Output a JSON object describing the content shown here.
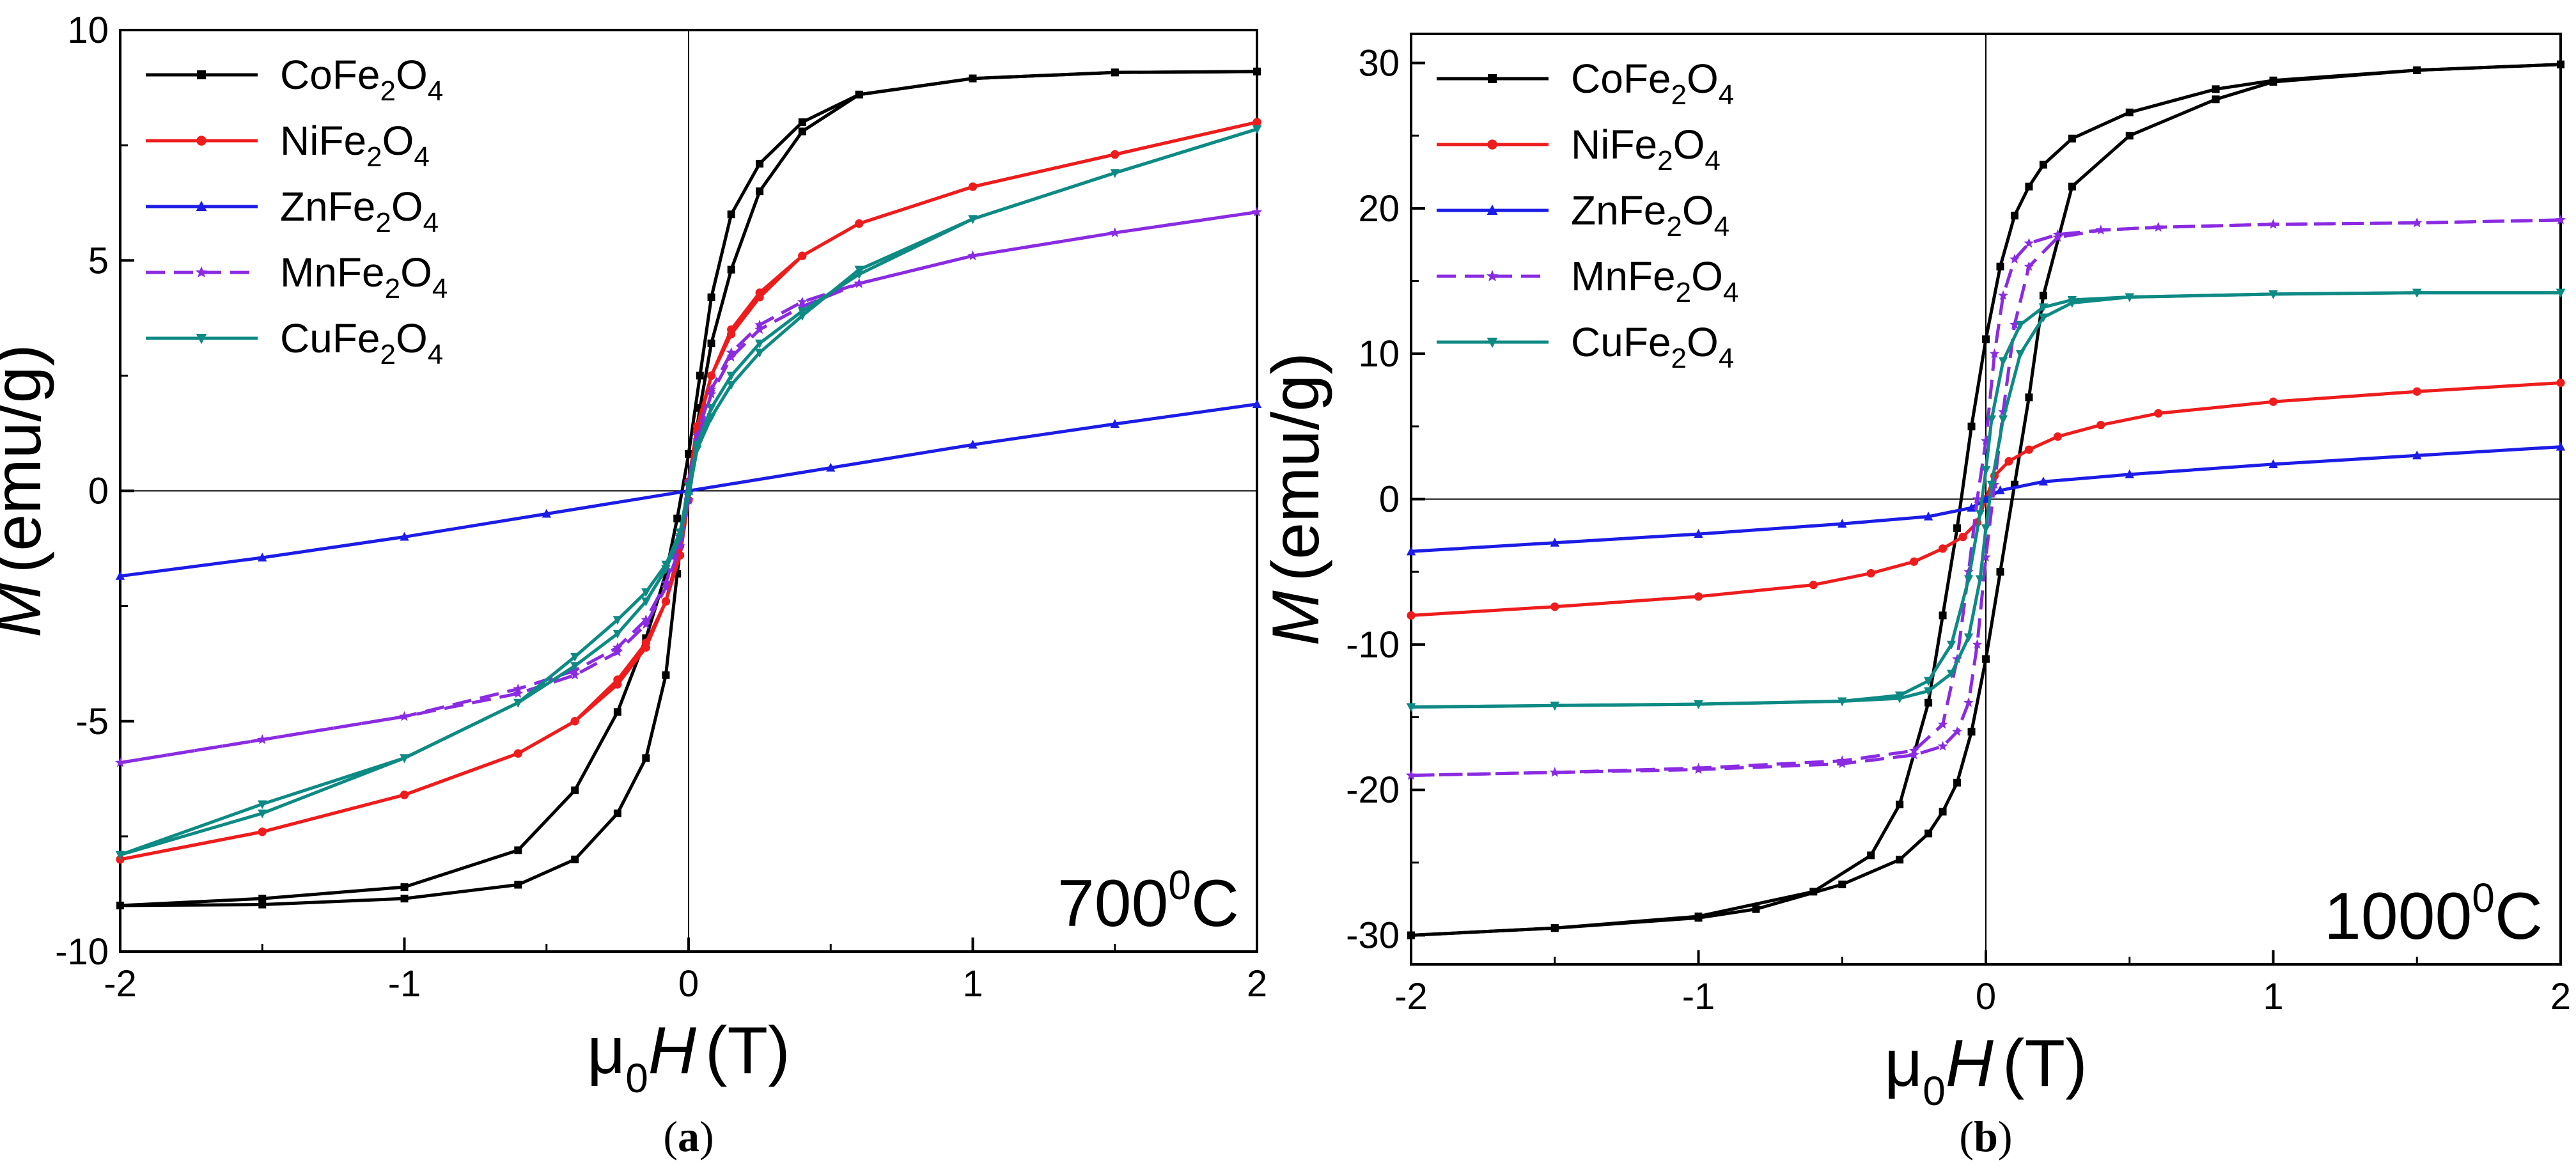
{
  "colors": {
    "CoFe2O4": "#000000",
    "NiFe2O4": "#ee1c1c",
    "ZnFe2O4": "#1c1ce6",
    "MnFe2O4": "#8a2be2",
    "CuFe2O4": "#0e8a84"
  },
  "chart_data": [
    {
      "type": "line",
      "caption": "a",
      "annotation": {
        "main": "700",
        "sup": "0",
        "tail": "C"
      },
      "xlabel": {
        "prefix": "μ",
        "sub": "0",
        "italic": "H",
        "unit": "(T)"
      },
      "ylabel": {
        "italic": "M",
        "unit": "(emu/g)"
      },
      "xlim": [
        -2,
        2
      ],
      "ylim": [
        -10,
        10
      ],
      "xticks": [
        "-2",
        "-1",
        "0",
        "1",
        "2"
      ],
      "yticks": [
        "-10",
        "-5",
        "0",
        "5",
        "10"
      ],
      "legend_position": "top-left",
      "series": [
        {
          "name": "CoFe2O4",
          "label": {
            "a": "CoFe",
            "s1": "2",
            "b": "O",
            "s2": "4"
          },
          "marker": "square",
          "branches": [
            {
              "x": [
                -2,
                -1.5,
                -1,
                -0.6,
                -0.4,
                -0.25,
                -0.15,
                -0.08,
                -0.04,
                0.0,
                0.04,
                0.08,
                0.15,
                0.25,
                0.4,
                0.6,
                1,
                1.5,
                2
              ],
              "y": [
                -9.0,
                -8.85,
                -8.6,
                -7.8,
                -6.5,
                -4.8,
                -3.2,
                -1.8,
                -0.6,
                0.8,
                2.5,
                4.2,
                6.0,
                7.1,
                8.0,
                8.6,
                8.95,
                9.08,
                9.1
              ]
            },
            {
              "x": [
                2,
                1.5,
                1,
                0.6,
                0.4,
                0.25,
                0.15,
                0.08,
                0.04,
                0.0,
                -0.04,
                -0.08,
                -0.15,
                -0.25,
                -0.4,
                -0.6,
                -1,
                -1.5,
                -2
              ],
              "y": [
                9.1,
                9.08,
                8.95,
                8.6,
                7.8,
                6.5,
                4.8,
                3.2,
                1.8,
                0.2,
                -1.8,
                -4.0,
                -5.8,
                -7.0,
                -8.0,
                -8.55,
                -8.85,
                -8.98,
                -9.0
              ]
            }
          ]
        },
        {
          "name": "NiFe2O4",
          "label": {
            "a": "NiFe",
            "s1": "2",
            "b": "O",
            "s2": "4"
          },
          "marker": "circle",
          "branches": [
            {
              "x": [
                -2,
                -1.5,
                -1,
                -0.6,
                -0.4,
                -0.25,
                -0.15,
                -0.08,
                -0.03,
                0.0,
                0.03,
                0.08,
                0.15,
                0.25,
                0.4,
                0.6,
                1,
                1.5,
                2
              ],
              "y": [
                -8.0,
                -7.4,
                -6.6,
                -5.7,
                -5.0,
                -4.1,
                -3.3,
                -2.4,
                -1.2,
                0.2,
                1.4,
                2.5,
                3.5,
                4.3,
                5.1,
                5.8,
                6.6,
                7.3,
                8.0
              ]
            },
            {
              "x": [
                2,
                1.5,
                1,
                0.6,
                0.4,
                0.25,
                0.15,
                0.08,
                0.03,
                0.0,
                -0.03,
                -0.08,
                -0.15,
                -0.25,
                -0.4,
                -0.6,
                -1,
                -1.5,
                -2
              ],
              "y": [
                8.0,
                7.3,
                6.6,
                5.8,
                5.1,
                4.2,
                3.4,
                2.5,
                1.3,
                -0.2,
                -1.4,
                -2.4,
                -3.4,
                -4.2,
                -5.0,
                -5.7,
                -6.6,
                -7.4,
                -8.0
              ]
            }
          ]
        },
        {
          "name": "ZnFe2O4",
          "label": {
            "a": "ZnFe",
            "s1": "2",
            "b": "O",
            "s2": "4"
          },
          "marker": "triangle",
          "branches": [
            {
              "x": [
                -2,
                -1.5,
                -1,
                -0.5,
                0,
                0.5,
                1,
                1.5,
                2
              ],
              "y": [
                -1.85,
                -1.45,
                -1.0,
                -0.5,
                0.0,
                0.5,
                1.0,
                1.45,
                1.88
              ]
            }
          ]
        },
        {
          "name": "MnFe2O4",
          "label": {
            "a": "MnFe",
            "s1": "2",
            "b": "O",
            "s2": "4"
          },
          "marker": "star",
          "branches": [
            {
              "x": [
                -2,
                -1.5,
                -1,
                -0.6,
                -0.4,
                -0.25,
                -0.15,
                -0.08,
                -0.03,
                0.0,
                0.03,
                0.08,
                0.15,
                0.25,
                0.4,
                0.6,
                1,
                1.5,
                2
              ],
              "y": [
                -5.9,
                -5.4,
                -4.9,
                -4.3,
                -3.9,
                -3.4,
                -2.8,
                -2.0,
                -1.0,
                0.2,
                1.2,
                2.2,
                3.0,
                3.6,
                4.1,
                4.5,
                5.1,
                5.6,
                6.05
              ]
            },
            {
              "x": [
                2,
                1.5,
                1,
                0.6,
                0.4,
                0.25,
                0.15,
                0.08,
                0.03,
                0.0,
                -0.03,
                -0.08,
                -0.15,
                -0.25,
                -0.4,
                -0.6,
                -1,
                -1.5,
                -2
              ],
              "y": [
                6.05,
                5.6,
                5.1,
                4.5,
                4.0,
                3.5,
                2.9,
                2.1,
                1.1,
                -0.2,
                -1.2,
                -2.1,
                -2.9,
                -3.5,
                -4.0,
                -4.4,
                -4.9,
                -5.4,
                -5.9
              ]
            }
          ]
        },
        {
          "name": "CuFe2O4",
          "label": {
            "a": "CuFe",
            "s1": "2",
            "b": "O",
            "s2": "4"
          },
          "marker": "triangle-down",
          "branches": [
            {
              "x": [
                -2,
                -1.5,
                -1,
                -0.6,
                -0.4,
                -0.25,
                -0.15,
                -0.08,
                -0.03,
                0.0,
                0.03,
                0.08,
                0.15,
                0.25,
                0.4,
                0.6,
                1,
                1.5,
                2
              ],
              "y": [
                -7.9,
                -7.0,
                -5.8,
                -4.6,
                -3.6,
                -2.8,
                -2.2,
                -1.6,
                -0.9,
                0.1,
                1.0,
                1.8,
                2.5,
                3.2,
                3.9,
                4.7,
                5.9,
                6.9,
                7.85
              ]
            },
            {
              "x": [
                2,
                1.5,
                1,
                0.6,
                0.4,
                0.25,
                0.15,
                0.08,
                0.03,
                0.0,
                -0.03,
                -0.08,
                -0.15,
                -0.25,
                -0.4,
                -0.6,
                -1,
                -1.5,
                -2
              ],
              "y": [
                7.85,
                6.9,
                5.9,
                4.8,
                3.8,
                3.0,
                2.3,
                1.6,
                0.9,
                -0.1,
                -1.0,
                -1.7,
                -2.4,
                -3.1,
                -3.8,
                -4.6,
                -5.8,
                -6.8,
                -7.9
              ]
            }
          ]
        }
      ]
    },
    {
      "type": "line",
      "caption": "b",
      "annotation": {
        "main": "1000",
        "sup": "0",
        "tail": "C"
      },
      "xlabel": {
        "prefix": "μ",
        "sub": "0",
        "italic": "H",
        "unit": "(T)"
      },
      "ylabel": {
        "italic": "M",
        "unit": "(emu/g)"
      },
      "xlim": [
        -2,
        2
      ],
      "ylim": [
        -32,
        32
      ],
      "xticks": [
        "-2",
        "-1",
        "0",
        "1",
        "2"
      ],
      "yticks": [
        "-30",
        "-20",
        "-10",
        "0",
        "10",
        "20",
        "30"
      ],
      "legend_position": "top-left",
      "series": [
        {
          "name": "CoFe2O4",
          "label": {
            "a": "CoFe",
            "s1": "2",
            "b": "O",
            "s2": "4"
          },
          "marker": "square",
          "branches": [
            {
              "x": [
                -2,
                -1.5,
                -1,
                -0.6,
                -0.4,
                -0.3,
                -0.2,
                -0.15,
                -0.1,
                -0.05,
                0.0,
                0.05,
                0.1,
                0.15,
                0.2,
                0.3,
                0.5,
                0.8,
                1,
                1.5,
                2
              ],
              "y": [
                -30.0,
                -29.5,
                -28.7,
                -27.0,
                -24.5,
                -21.0,
                -14.0,
                -8.0,
                -2.0,
                5.0,
                11.0,
                16.0,
                19.5,
                21.5,
                23.0,
                24.8,
                26.6,
                28.2,
                28.8,
                29.5,
                29.9
              ]
            },
            {
              "x": [
                2,
                1.5,
                1,
                0.8,
                0.5,
                0.3,
                0.2,
                0.15,
                0.1,
                0.05,
                0.0,
                -0.05,
                -0.1,
                -0.15,
                -0.2,
                -0.3,
                -0.5,
                -0.8,
                -1,
                -1.5,
                -2
              ],
              "y": [
                29.9,
                29.5,
                28.7,
                27.5,
                25.0,
                21.5,
                14.0,
                7.0,
                1.0,
                -5.0,
                -11.0,
                -16.0,
                -19.5,
                -21.5,
                -23.0,
                -24.8,
                -26.5,
                -28.2,
                -28.8,
                -29.5,
                -30.0
              ]
            }
          ]
        },
        {
          "name": "NiFe2O4",
          "label": {
            "a": "NiFe",
            "s1": "2",
            "b": "O",
            "s2": "4"
          },
          "marker": "circle",
          "branches": [
            {
              "x": [
                -2,
                -1.5,
                -1,
                -0.6,
                -0.4,
                -0.25,
                -0.15,
                -0.08,
                -0.03,
                0.0,
                0.03,
                0.08,
                0.15,
                0.25,
                0.4,
                0.6,
                1,
                1.5,
                2
              ],
              "y": [
                -8.0,
                -7.4,
                -6.7,
                -5.9,
                -5.1,
                -4.3,
                -3.4,
                -2.6,
                -1.6,
                0.0,
                1.6,
                2.6,
                3.4,
                4.3,
                5.1,
                5.9,
                6.7,
                7.4,
                8.0
              ]
            }
          ]
        },
        {
          "name": "ZnFe2O4",
          "label": {
            "a": "ZnFe",
            "s1": "2",
            "b": "O",
            "s2": "4"
          },
          "marker": "triangle",
          "branches": [
            {
              "x": [
                -2,
                -1.5,
                -1,
                -0.5,
                -0.2,
                -0.05,
                0.0,
                0.05,
                0.2,
                0.5,
                1,
                1.5,
                2
              ],
              "y": [
                -3.6,
                -3.0,
                -2.4,
                -1.7,
                -1.2,
                -0.6,
                0.0,
                0.6,
                1.2,
                1.7,
                2.4,
                3.0,
                3.6
              ]
            }
          ]
        },
        {
          "name": "MnFe2O4",
          "label": {
            "a": "MnFe",
            "s1": "2",
            "b": "O",
            "s2": "4"
          },
          "marker": "star",
          "branches": [
            {
              "x": [
                -2,
                -1.5,
                -1,
                -0.5,
                -0.25,
                -0.15,
                -0.1,
                -0.06,
                -0.03,
                0.0,
                0.03,
                0.06,
                0.1,
                0.15,
                0.25,
                0.4,
                0.6,
                1,
                1.5,
                2
              ],
              "y": [
                -19.0,
                -18.8,
                -18.5,
                -18.0,
                -17.3,
                -15.5,
                -11.0,
                -5.0,
                0.0,
                4.0,
                10.0,
                14.0,
                16.5,
                17.6,
                18.2,
                18.5,
                18.7,
                18.9,
                19.0,
                19.2
              ]
            },
            {
              "x": [
                2,
                1.5,
                1,
                0.6,
                0.4,
                0.25,
                0.15,
                0.1,
                0.06,
                0.03,
                0.0,
                -0.03,
                -0.06,
                -0.1,
                -0.15,
                -0.25,
                -0.5,
                -1,
                -1.5,
                -2
              ],
              "y": [
                19.2,
                19.0,
                18.9,
                18.7,
                18.5,
                18.0,
                16.0,
                12.0,
                6.0,
                1.0,
                -4.0,
                -10.0,
                -14.0,
                -16.0,
                -17.0,
                -17.6,
                -18.2,
                -18.6,
                -18.8,
                -19.0
              ]
            }
          ]
        },
        {
          "name": "CuFe2O4",
          "label": {
            "a": "CuFe",
            "s1": "2",
            "b": "O",
            "s2": "4"
          },
          "marker": "triangle-down",
          "branches": [
            {
              "x": [
                -2,
                -1.5,
                -1,
                -0.5,
                -0.3,
                -0.2,
                -0.12,
                -0.06,
                -0.02,
                0.0,
                0.02,
                0.06,
                0.12,
                0.2,
                0.3,
                0.5,
                1,
                1.5,
                2
              ],
              "y": [
                -14.3,
                -14.2,
                -14.1,
                -13.9,
                -13.5,
                -12.5,
                -10.0,
                -5.5,
                -1.0,
                2.0,
                5.5,
                9.5,
                12.0,
                13.2,
                13.7,
                13.9,
                14.1,
                14.2,
                14.2
              ]
            },
            {
              "x": [
                2,
                1.5,
                1,
                0.5,
                0.3,
                0.2,
                0.12,
                0.06,
                0.02,
                0.0,
                -0.02,
                -0.06,
                -0.12,
                -0.2,
                -0.3,
                -0.5,
                -1,
                -1.5,
                -2
              ],
              "y": [
                14.2,
                14.2,
                14.1,
                13.9,
                13.5,
                12.5,
                10.0,
                5.5,
                1.0,
                -2.0,
                -5.5,
                -9.5,
                -12.0,
                -13.2,
                -13.7,
                -13.9,
                -14.1,
                -14.2,
                -14.3
              ]
            }
          ]
        }
      ]
    }
  ]
}
